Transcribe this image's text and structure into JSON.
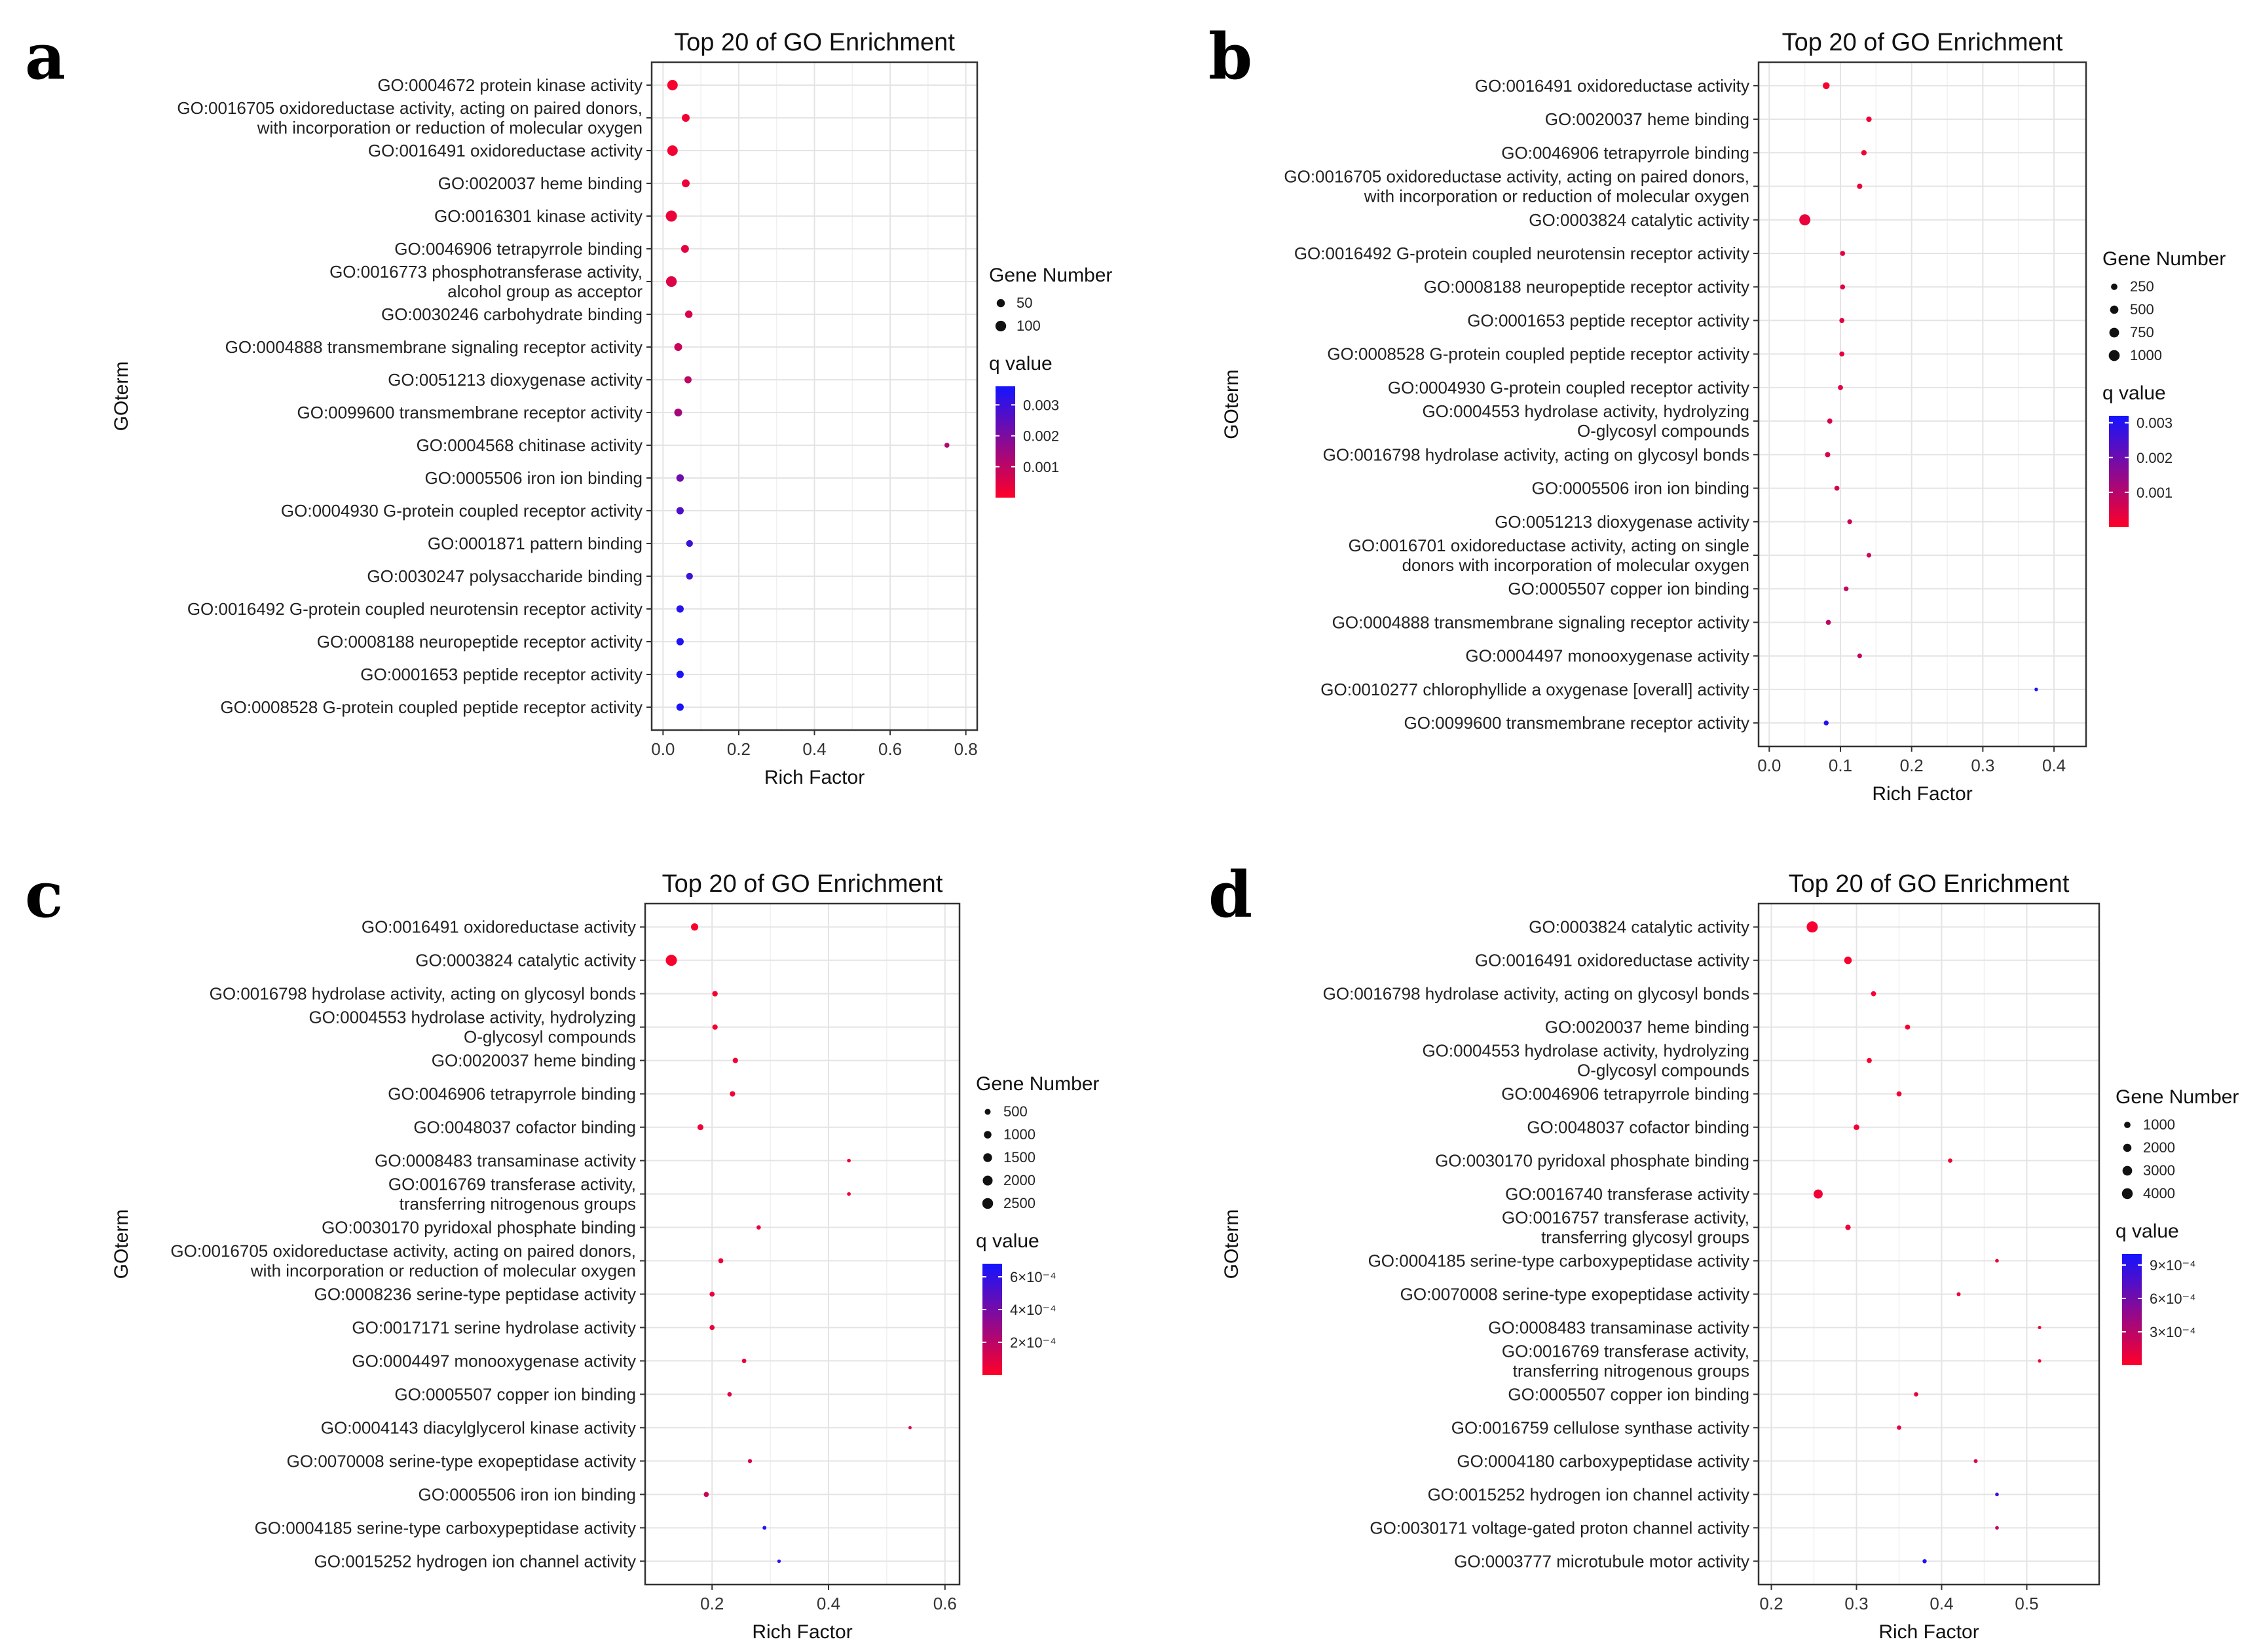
{
  "chart_data": [
    {
      "panel": "a",
      "type": "scatter",
      "title": "Top 20 of GO Enrichment",
      "xlabel": "Rich Factor",
      "ylabel": "GOterm",
      "xlim": [
        -0.03,
        0.83
      ],
      "xticks": [
        "0.0",
        "0.2",
        "0.4",
        "0.6",
        "0.8"
      ],
      "xtick_values": [
        0.0,
        0.2,
        0.4,
        0.6,
        0.8
      ],
      "size_legend_title": "Gene Number",
      "size_legend": [
        "50",
        "100"
      ],
      "size_legend_values": [
        50,
        100
      ],
      "color_legend_title": "q value",
      "color_legend": [
        "0.003",
        "0.002",
        "0.001"
      ],
      "color_legend_values": [
        0.003,
        0.002,
        0.001
      ],
      "q_range": [
        0.0,
        0.0036
      ],
      "points": [
        {
          "term": [
            "GO:0004672 protein kinase activity"
          ],
          "x": 0.025,
          "size": 95,
          "q": 0.0001
        },
        {
          "term": [
            "GO:0016705 oxidoreductase activity, acting on paired donors,",
            "with incorporation or reduction of molecular oxygen"
          ],
          "x": 0.06,
          "size": 45,
          "q": 0.0002
        },
        {
          "term": [
            "GO:0016491 oxidoreductase activity"
          ],
          "x": 0.025,
          "size": 95,
          "q": 0.0002
        },
        {
          "term": [
            "GO:0020037 heme binding"
          ],
          "x": 0.06,
          "size": 45,
          "q": 0.0003
        },
        {
          "term": [
            "GO:0016301 kinase activity"
          ],
          "x": 0.022,
          "size": 110,
          "q": 0.0003
        },
        {
          "term": [
            "GO:0046906 tetrapyrrole binding"
          ],
          "x": 0.058,
          "size": 45,
          "q": 0.0004
        },
        {
          "term": [
            "GO:0016773 phosphotransferase activity,",
            "alcohol group as acceptor"
          ],
          "x": 0.022,
          "size": 100,
          "q": 0.0005
        },
        {
          "term": [
            "GO:0030246 carbohydrate binding"
          ],
          "x": 0.068,
          "size": 40,
          "q": 0.0006
        },
        {
          "term": [
            "GO:0004888 transmembrane signaling receptor activity"
          ],
          "x": 0.04,
          "size": 45,
          "q": 0.0008
        },
        {
          "term": [
            "GO:0051213 dioxygenase activity"
          ],
          "x": 0.066,
          "size": 35,
          "q": 0.001
        },
        {
          "term": [
            "GO:0099600 transmembrane receptor activity"
          ],
          "x": 0.04,
          "size": 45,
          "q": 0.0014
        },
        {
          "term": [
            "GO:0004568 chitinase activity"
          ],
          "x": 0.75,
          "size": 12,
          "q": 0.0012
        },
        {
          "term": [
            "GO:0005506 iron ion binding"
          ],
          "x": 0.045,
          "size": 40,
          "q": 0.0022
        },
        {
          "term": [
            "GO:0004930 G-protein coupled receptor activity"
          ],
          "x": 0.045,
          "size": 38,
          "q": 0.0027
        },
        {
          "term": [
            "GO:0001871 pattern binding"
          ],
          "x": 0.07,
          "size": 30,
          "q": 0.003
        },
        {
          "term": [
            "GO:0030247 polysaccharide binding"
          ],
          "x": 0.07,
          "size": 30,
          "q": 0.003
        },
        {
          "term": [
            "GO:0016492 G-protein coupled neurotensin receptor activity"
          ],
          "x": 0.045,
          "size": 38,
          "q": 0.0033
        },
        {
          "term": [
            "GO:0008188 neuropeptide receptor activity"
          ],
          "x": 0.045,
          "size": 38,
          "q": 0.0034
        },
        {
          "term": [
            "GO:0001653 peptide receptor activity"
          ],
          "x": 0.045,
          "size": 38,
          "q": 0.0035
        },
        {
          "term": [
            "GO:0008528 G-protein coupled peptide receptor activity"
          ],
          "x": 0.045,
          "size": 38,
          "q": 0.0035
        }
      ]
    },
    {
      "panel": "b",
      "type": "scatter",
      "title": "Top 20 of GO Enrichment",
      "xlabel": "Rich Factor",
      "ylabel": "GOterm",
      "xlim": [
        -0.015,
        0.445
      ],
      "xticks": [
        "0.0",
        "0.1",
        "0.2",
        "0.3",
        "0.4"
      ],
      "xtick_values": [
        0.0,
        0.1,
        0.2,
        0.3,
        0.4
      ],
      "size_legend_title": "Gene Number",
      "size_legend": [
        "250",
        "500",
        "750",
        "1000"
      ],
      "size_legend_values": [
        250,
        500,
        750,
        1000
      ],
      "color_legend_title": "q value",
      "color_legend": [
        "0.003",
        "0.002",
        "0.001"
      ],
      "color_legend_values": [
        0.003,
        0.002,
        0.001
      ],
      "q_range": [
        0.0,
        0.0032
      ],
      "points": [
        {
          "term": [
            "GO:0016491 oxidoreductase activity"
          ],
          "x": 0.08,
          "size": 300,
          "q": 0.0001
        },
        {
          "term": [
            "GO:0020037 heme binding"
          ],
          "x": 0.14,
          "size": 150,
          "q": 0.0002
        },
        {
          "term": [
            "GO:0046906 tetrapyrrole binding"
          ],
          "x": 0.133,
          "size": 150,
          "q": 0.0002
        },
        {
          "term": [
            "GO:0016705 oxidoreductase activity, acting on paired donors,",
            "with incorporation or reduction of molecular oxygen"
          ],
          "x": 0.127,
          "size": 140,
          "q": 0.0003
        },
        {
          "term": [
            "GO:0003824 catalytic activity"
          ],
          "x": 0.05,
          "size": 1050,
          "q": 0.0003
        },
        {
          "term": [
            "GO:0016492 G-protein coupled neurotensin receptor activity"
          ],
          "x": 0.103,
          "size": 120,
          "q": 0.0004
        },
        {
          "term": [
            "GO:0008188 neuropeptide receptor activity"
          ],
          "x": 0.103,
          "size": 120,
          "q": 0.0004
        },
        {
          "term": [
            "GO:0001653 peptide receptor activity"
          ],
          "x": 0.102,
          "size": 120,
          "q": 0.0004
        },
        {
          "term": [
            "GO:0008528 G-protein coupled peptide receptor activity"
          ],
          "x": 0.102,
          "size": 120,
          "q": 0.0004
        },
        {
          "term": [
            "GO:0004930 G-protein coupled receptor activity"
          ],
          "x": 0.1,
          "size": 120,
          "q": 0.0004
        },
        {
          "term": [
            "GO:0004553 hydrolase activity, hydrolyzing",
            "O-glycosyl compounds"
          ],
          "x": 0.085,
          "size": 130,
          "q": 0.0005
        },
        {
          "term": [
            "GO:0016798 hydrolase activity, acting on glycosyl bonds"
          ],
          "x": 0.082,
          "size": 140,
          "q": 0.0005
        },
        {
          "term": [
            "GO:0005506 iron ion binding"
          ],
          "x": 0.095,
          "size": 120,
          "q": 0.0006
        },
        {
          "term": [
            "GO:0051213 dioxygenase activity"
          ],
          "x": 0.113,
          "size": 100,
          "q": 0.0007
        },
        {
          "term": [
            "GO:0016701 oxidoreductase activity, acting on single",
            "donors with incorporation of molecular oxygen"
          ],
          "x": 0.14,
          "size": 90,
          "q": 0.0007
        },
        {
          "term": [
            "GO:0005507 copper ion binding"
          ],
          "x": 0.108,
          "size": 100,
          "q": 0.0008
        },
        {
          "term": [
            "GO:0004888 transmembrane signaling receptor activity"
          ],
          "x": 0.083,
          "size": 120,
          "q": 0.0009
        },
        {
          "term": [
            "GO:0004497 monooxygenase activity"
          ],
          "x": 0.127,
          "size": 90,
          "q": 0.0009
        },
        {
          "term": [
            "GO:0010277 chlorophyllide a oxygenase [overall] activity"
          ],
          "x": 0.375,
          "size": 30,
          "q": 0.0032
        },
        {
          "term": [
            "GO:0099600 transmembrane receptor activity"
          ],
          "x": 0.08,
          "size": 110,
          "q": 0.003
        }
      ]
    },
    {
      "panel": "c",
      "type": "scatter",
      "title": "Top 20 of GO Enrichment",
      "xlabel": "Rich Factor",
      "ylabel": "GOterm",
      "xlim": [
        0.085,
        0.625
      ],
      "xticks": [
        "0.2",
        "0.4",
        "0.6"
      ],
      "xtick_values": [
        0.2,
        0.4,
        0.6
      ],
      "size_legend_title": "Gene Number",
      "size_legend": [
        "500",
        "1000",
        "1500",
        "2000",
        "2500"
      ],
      "size_legend_values": [
        500,
        1000,
        1500,
        2000,
        2500
      ],
      "color_legend_title": "q value",
      "color_legend": [
        "6×10⁻⁴",
        "4×10⁻⁴",
        "2×10⁻⁴"
      ],
      "color_legend_values": [
        0.0006,
        0.0004,
        0.0002
      ],
      "q_range": [
        0.0,
        0.00068
      ],
      "points": [
        {
          "term": [
            "GO:0016491 oxidoreductase activity"
          ],
          "x": 0.17,
          "size": 900,
          "q": 2e-05
        },
        {
          "term": [
            "GO:0003824 catalytic activity"
          ],
          "x": 0.13,
          "size": 2700,
          "q": 2e-05
        },
        {
          "term": [
            "GO:0016798 hydrolase activity, acting on glycosyl bonds"
          ],
          "x": 0.205,
          "size": 400,
          "q": 3e-05
        },
        {
          "term": [
            "GO:0004553 hydrolase activity, hydrolyzing",
            "O-glycosyl compounds"
          ],
          "x": 0.205,
          "size": 380,
          "q": 3e-05
        },
        {
          "term": [
            "GO:0020037 heme binding"
          ],
          "x": 0.24,
          "size": 380,
          "q": 4e-05
        },
        {
          "term": [
            "GO:0046906 tetrapyrrole binding"
          ],
          "x": 0.235,
          "size": 380,
          "q": 4e-05
        },
        {
          "term": [
            "GO:0048037 cofactor binding"
          ],
          "x": 0.18,
          "size": 500,
          "q": 4e-05
        },
        {
          "term": [
            "GO:0008483 transaminase activity"
          ],
          "x": 0.435,
          "size": 100,
          "q": 5e-05
        },
        {
          "term": [
            "GO:0016769 transferase activity,",
            "transferring nitrogenous groups"
          ],
          "x": 0.435,
          "size": 100,
          "q": 5e-05
        },
        {
          "term": [
            "GO:0030170 pyridoxal phosphate binding"
          ],
          "x": 0.28,
          "size": 180,
          "q": 6e-05
        },
        {
          "term": [
            "GO:0016705 oxidoreductase activity, acting on paired donors,",
            "with incorporation or reduction of molecular oxygen"
          ],
          "x": 0.215,
          "size": 300,
          "q": 6e-05
        },
        {
          "term": [
            "GO:0008236 serine-type peptidase activity"
          ],
          "x": 0.2,
          "size": 300,
          "q": 7e-05
        },
        {
          "term": [
            "GO:0017171 serine hydrolase activity"
          ],
          "x": 0.2,
          "size": 300,
          "q": 7e-05
        },
        {
          "term": [
            "GO:0004497 monooxygenase activity"
          ],
          "x": 0.255,
          "size": 200,
          "q": 8e-05
        },
        {
          "term": [
            "GO:0005507 copper ion binding"
          ],
          "x": 0.23,
          "size": 200,
          "q": 9e-05
        },
        {
          "term": [
            "GO:0004143 diacylglycerol kinase activity"
          ],
          "x": 0.54,
          "size": 50,
          "q": 0.0001
        },
        {
          "term": [
            "GO:0070008 serine-type exopeptidase activity"
          ],
          "x": 0.265,
          "size": 150,
          "q": 0.00012
        },
        {
          "term": [
            "GO:0005506 iron ion binding"
          ],
          "x": 0.19,
          "size": 300,
          "q": 0.00015
        },
        {
          "term": [
            "GO:0004185 serine-type carboxypeptidase activity"
          ],
          "x": 0.29,
          "size": 120,
          "q": 0.00065
        },
        {
          "term": [
            "GO:0015252 hydrogen ion channel activity"
          ],
          "x": 0.315,
          "size": 80,
          "q": 0.0006
        }
      ]
    },
    {
      "panel": "d",
      "type": "scatter",
      "title": "Top 20 of GO Enrichment",
      "xlabel": "Rich Factor",
      "ylabel": "GOterm",
      "xlim": [
        0.185,
        0.585
      ],
      "xticks": [
        "0.2",
        "0.3",
        "0.4",
        "0.5"
      ],
      "xtick_values": [
        0.2,
        0.3,
        0.4,
        0.5
      ],
      "size_legend_title": "Gene Number",
      "size_legend": [
        "1000",
        "2000",
        "3000",
        "4000"
      ],
      "size_legend_values": [
        1000,
        2000,
        3000,
        4000
      ],
      "color_legend_title": "q value",
      "color_legend": [
        "9×10⁻⁴",
        "6×10⁻⁴",
        "3×10⁻⁴"
      ],
      "color_legend_values": [
        0.0009,
        0.0006,
        0.0003
      ],
      "q_range": [
        0.0,
        0.001
      ],
      "points": [
        {
          "term": [
            "GO:0003824 catalytic activity"
          ],
          "x": 0.248,
          "size": 4300,
          "q": 3e-05
        },
        {
          "term": [
            "GO:0016491 oxidoreductase activity"
          ],
          "x": 0.29,
          "size": 1600,
          "q": 3e-05
        },
        {
          "term": [
            "GO:0016798 hydrolase activity, acting on glycosyl bonds"
          ],
          "x": 0.32,
          "size": 500,
          "q": 4e-05
        },
        {
          "term": [
            "GO:0020037 heme binding"
          ],
          "x": 0.36,
          "size": 500,
          "q": 4e-05
        },
        {
          "term": [
            "GO:0004553 hydrolase activity, hydrolyzing",
            "O-glycosyl compounds"
          ],
          "x": 0.315,
          "size": 500,
          "q": 4e-05
        },
        {
          "term": [
            "GO:0046906 tetrapyrrole binding"
          ],
          "x": 0.35,
          "size": 500,
          "q": 5e-05
        },
        {
          "term": [
            "GO:0048037 cofactor binding"
          ],
          "x": 0.3,
          "size": 700,
          "q": 5e-05
        },
        {
          "term": [
            "GO:0030170 pyridoxal phosphate binding"
          ],
          "x": 0.41,
          "size": 300,
          "q": 6e-05
        },
        {
          "term": [
            "GO:0016740 transferase activity"
          ],
          "x": 0.255,
          "size": 2600,
          "q": 6e-05
        },
        {
          "term": [
            "GO:0016757 transferase activity,",
            "transferring glycosyl groups"
          ],
          "x": 0.29,
          "size": 600,
          "q": 7e-05
        },
        {
          "term": [
            "GO:0004185 serine-type carboxypeptidase activity"
          ],
          "x": 0.465,
          "size": 150,
          "q": 8e-05
        },
        {
          "term": [
            "GO:0070008 serine-type exopeptidase activity"
          ],
          "x": 0.42,
          "size": 200,
          "q": 8e-05
        },
        {
          "term": [
            "GO:0008483 transaminase activity"
          ],
          "x": 0.515,
          "size": 100,
          "q": 9e-05
        },
        {
          "term": [
            "GO:0016769 transferase activity,",
            "transferring nitrogenous groups"
          ],
          "x": 0.515,
          "size": 100,
          "q": 9e-05
        },
        {
          "term": [
            "GO:0005507 copper ion binding"
          ],
          "x": 0.37,
          "size": 300,
          "q": 0.0001
        },
        {
          "term": [
            "GO:0016759 cellulose synthase activity"
          ],
          "x": 0.35,
          "size": 300,
          "q": 0.00012
        },
        {
          "term": [
            "GO:0004180 carboxypeptidase activity"
          ],
          "x": 0.44,
          "size": 200,
          "q": 0.00015
        },
        {
          "term": [
            "GO:0015252 hydrogen ion channel activity"
          ],
          "x": 0.465,
          "size": 150,
          "q": 0.0008
        },
        {
          "term": [
            "GO:0030171 voltage-gated proton channel activity"
          ],
          "x": 0.465,
          "size": 150,
          "q": 0.00025
        },
        {
          "term": [
            "GO:0003777 microtubule motor activity"
          ],
          "x": 0.38,
          "size": 250,
          "q": 0.00095
        }
      ]
    }
  ]
}
